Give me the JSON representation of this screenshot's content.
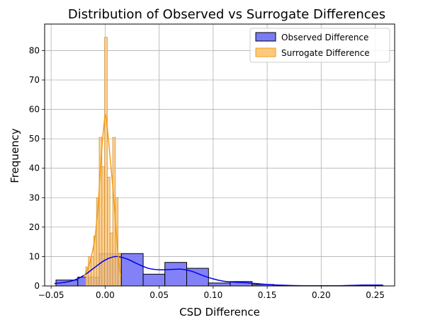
{
  "chart_data": {
    "type": "bar",
    "title": "Distribution of Observed vs Surrogate Differences",
    "xlabel": "CSD Difference",
    "ylabel": "Frequency",
    "xlim": [
      -0.056,
      0.268
    ],
    "ylim": [
      0,
      89
    ],
    "x_ticks": [
      -0.05,
      0.0,
      0.05,
      0.1,
      0.15,
      0.2,
      0.25
    ],
    "x_tick_labels": [
      "−0.05",
      "0.00",
      "0.05",
      "0.10",
      "0.15",
      "0.20",
      "0.25"
    ],
    "y_ticks": [
      0,
      10,
      20,
      30,
      40,
      50,
      60,
      70,
      80
    ],
    "y_tick_labels": [
      "0",
      "10",
      "20",
      "30",
      "40",
      "50",
      "60",
      "70",
      "80"
    ],
    "grid": true,
    "legend": "top-right",
    "series": [
      {
        "name": "Observed Difference",
        "kind": "histogram",
        "fill": "#7b7bf5",
        "line": "#0000ee",
        "bins": [
          {
            "x0": -0.0455,
            "x1": -0.0253,
            "count": 2
          },
          {
            "x0": -0.0253,
            "x1": -0.0152,
            "count": 3
          },
          {
            "x0": -0.0152,
            "x1": -0.0051,
            "count": 3
          },
          {
            "x0": -0.0051,
            "x1": 0.015,
            "count": 11
          },
          {
            "x0": 0.015,
            "x1": 0.0352,
            "count": 11
          },
          {
            "x0": 0.0352,
            "x1": 0.0553,
            "count": 4
          },
          {
            "x0": 0.0553,
            "x1": 0.0755,
            "count": 8
          },
          {
            "x0": 0.0755,
            "x1": 0.0957,
            "count": 6
          },
          {
            "x0": 0.0957,
            "x1": 0.1158,
            "count": 1
          },
          {
            "x0": 0.1158,
            "x1": 0.136,
            "count": 1.5
          },
          {
            "x0": 0.136,
            "x1": 0.1562,
            "count": 0.5
          },
          {
            "x0": 0.2369,
            "x1": 0.2571,
            "count": 0.3
          }
        ],
        "kde": [
          [
            -0.047,
            0.8
          ],
          [
            -0.04,
            1.1
          ],
          [
            -0.03,
            1.8
          ],
          [
            -0.02,
            3.5
          ],
          [
            -0.01,
            6.2
          ],
          [
            0.0,
            8.8
          ],
          [
            0.01,
            10.0
          ],
          [
            0.02,
            9.2
          ],
          [
            0.03,
            7.5
          ],
          [
            0.04,
            6.0
          ],
          [
            0.05,
            5.5
          ],
          [
            0.06,
            5.6
          ],
          [
            0.07,
            5.7
          ],
          [
            0.08,
            5.0
          ],
          [
            0.09,
            3.6
          ],
          [
            0.1,
            2.4
          ],
          [
            0.11,
            1.6
          ],
          [
            0.12,
            1.3
          ],
          [
            0.13,
            1.1
          ],
          [
            0.14,
            0.8
          ],
          [
            0.15,
            0.5
          ],
          [
            0.16,
            0.3
          ],
          [
            0.18,
            0.1
          ],
          [
            0.2,
            0.05
          ],
          [
            0.22,
            0.1
          ],
          [
            0.24,
            0.3
          ],
          [
            0.256,
            0.3
          ]
        ]
      },
      {
        "name": "Surrogate Difference",
        "kind": "histogram",
        "fill": "#fdc97f",
        "line": "#f39c12",
        "bins": [
          {
            "x0": -0.018,
            "x1": -0.0155,
            "count": 6.5
          },
          {
            "x0": -0.0155,
            "x1": -0.013,
            "count": 10
          },
          {
            "x0": -0.013,
            "x1": -0.0105,
            "count": 10
          },
          {
            "x0": -0.0105,
            "x1": -0.008,
            "count": 17
          },
          {
            "x0": -0.008,
            "x1": -0.0055,
            "count": 30
          },
          {
            "x0": -0.0055,
            "x1": -0.003,
            "count": 50.5
          },
          {
            "x0": -0.003,
            "x1": -0.0005,
            "count": 40.5
          },
          {
            "x0": -0.0005,
            "x1": 0.002,
            "count": 84.5
          },
          {
            "x0": 0.002,
            "x1": 0.0045,
            "count": 37
          },
          {
            "x0": 0.0045,
            "x1": 0.007,
            "count": 18
          },
          {
            "x0": 0.007,
            "x1": 0.0095,
            "count": 50.5
          },
          {
            "x0": 0.0095,
            "x1": 0.012,
            "count": 30
          },
          {
            "x0": 0.012,
            "x1": 0.0145,
            "count": 11
          }
        ],
        "kde": [
          [
            -0.02,
            3.0
          ],
          [
            -0.015,
            7.0
          ],
          [
            -0.01,
            15.0
          ],
          [
            -0.007,
            25.0
          ],
          [
            -0.005,
            36.0
          ],
          [
            -0.003,
            47.0
          ],
          [
            -0.001,
            55.0
          ],
          [
            0.0,
            58.0
          ],
          [
            0.001,
            57.0
          ],
          [
            0.003,
            50.0
          ],
          [
            0.005,
            42.0
          ],
          [
            0.007,
            34.0
          ],
          [
            0.009,
            25.0
          ],
          [
            0.011,
            15.0
          ],
          [
            0.013,
            7.0
          ],
          [
            0.0145,
            3.5
          ]
        ]
      }
    ]
  }
}
